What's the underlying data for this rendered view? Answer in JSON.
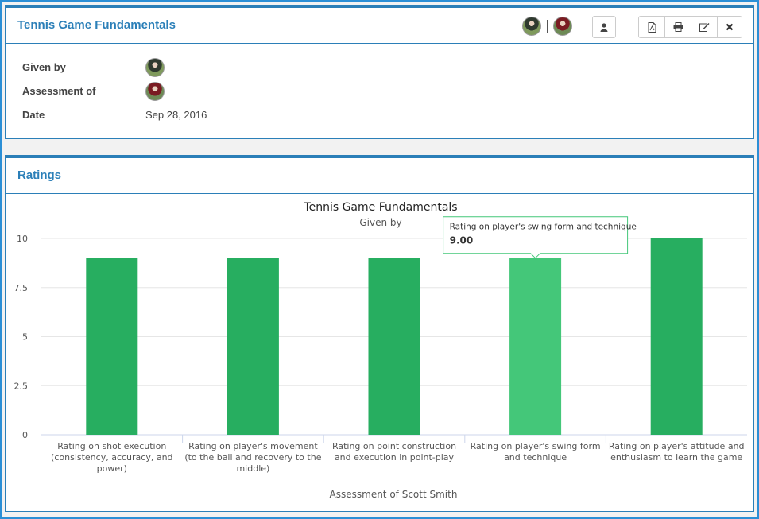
{
  "assessment": {
    "title": "Tennis Game Fundamentals",
    "given_by_label": "Given by",
    "assessment_of_label": "Assessment of",
    "date_label": "Date",
    "date_value": "Sep 28, 2016"
  },
  "header_icons": [
    "person-icon",
    "pdf-icon",
    "print-icon",
    "edit-icon",
    "close-icon"
  ],
  "ratings": {
    "title": "Ratings"
  },
  "chart_data": {
    "type": "bar",
    "title": "Tennis Game Fundamentals",
    "subtitle": "Given by",
    "xlabel": "Assessment of Scott Smith",
    "ylabel": "",
    "ylim": [
      0,
      10
    ],
    "yticks": [
      "0",
      "2.5",
      "5",
      "7.5",
      "10"
    ],
    "ytick_values": [
      0,
      2.5,
      5,
      7.5,
      10
    ],
    "categories": [
      "Rating on shot execution (consistency, accuracy, and power)",
      "Rating on player's movement (to the ball and recovery to the middle)",
      "Rating on point construction and execution in point-play",
      "Rating on player's swing form and technique",
      "Rating on player's attitude and enthusiasm to learn the game"
    ],
    "category_lines": [
      [
        "Rating on shot execution",
        "(consistency, accuracy, and",
        "power)"
      ],
      [
        "Rating on player's movement",
        "(to the ball and recovery to the",
        "middle)"
      ],
      [
        "Rating on point construction",
        "and execution in point-play"
      ],
      [
        "Rating on player's swing form",
        "and technique"
      ],
      [
        "Rating on player's attitude and",
        "enthusiasm to learn the game"
      ]
    ],
    "values": [
      9,
      9,
      9,
      9,
      10
    ],
    "bar_color": "#27ae60",
    "hover_color": "#44c779",
    "grid": true,
    "tooltip": {
      "category": "Rating on player's swing form and technique",
      "value": "9.00",
      "index": 3
    }
  },
  "colors": {
    "accent": "#2b7fb8",
    "frame": "#2b8fd6"
  }
}
